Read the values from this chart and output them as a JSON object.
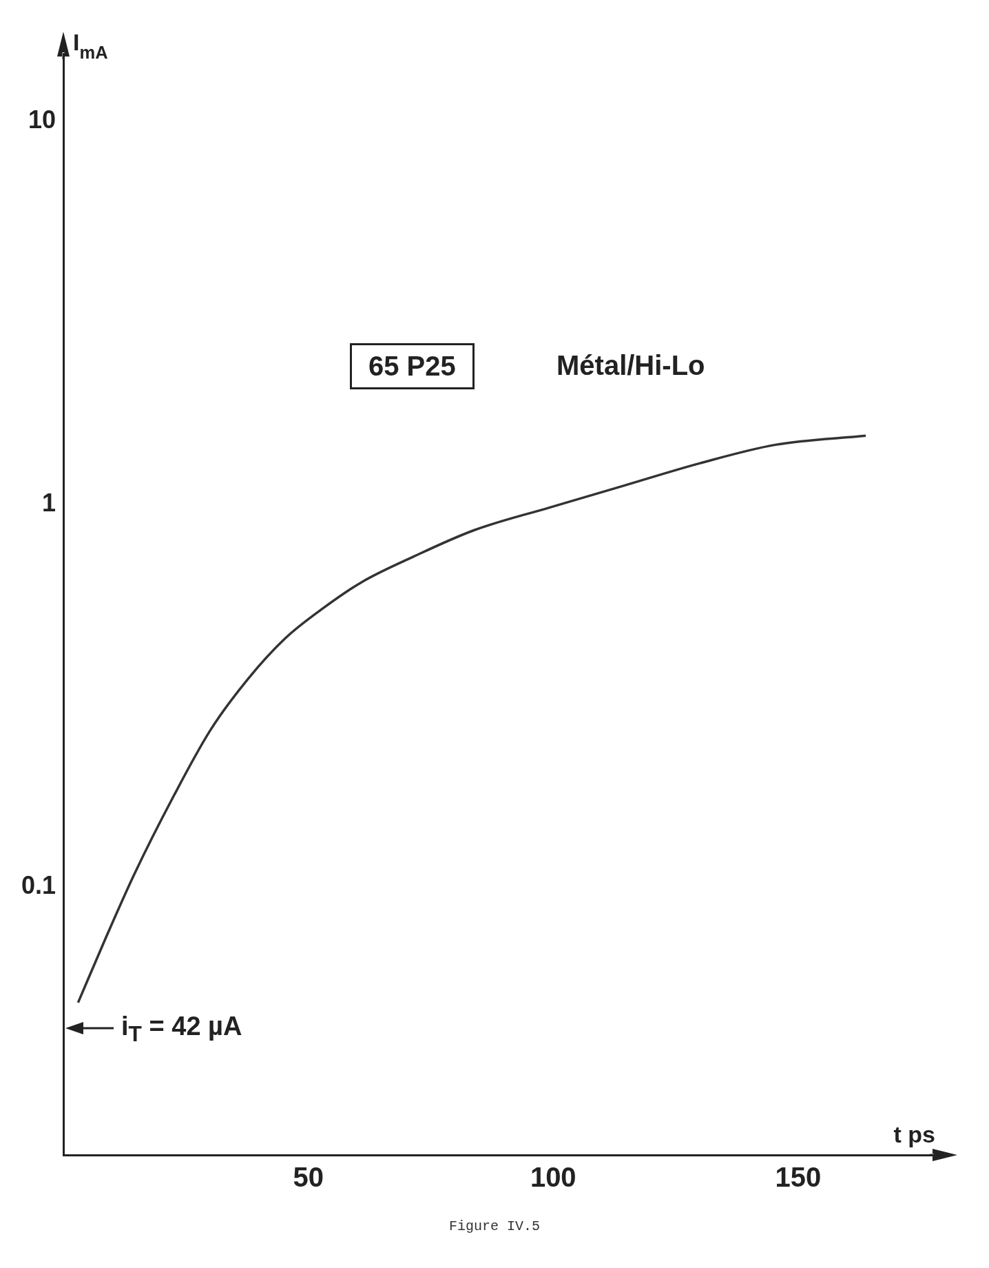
{
  "chart_data": {
    "type": "line",
    "xlabel": "t ps",
    "ylabel": "I$_{mA}$",
    "log": "y",
    "grid": false,
    "legend": false,
    "marker": "none",
    "line_style": "solid",
    "xlim": [
      0,
      178
    ],
    "xticks": [
      50,
      100,
      150
    ],
    "ylim": [
      0.02,
      15
    ],
    "yticks": [
      {
        "value": 0.1,
        "label": "0.1"
      },
      1,
      10
    ],
    "x": [
      3,
      8.5,
      14.6,
      22.3,
      30,
      37.7,
      45.4,
      53,
      60.8,
      71.5,
      83.8,
      99.2,
      114.6,
      130,
      145.4,
      163.8
    ],
    "series": [
      {
        "color": "#333333",
        "values": [
          0.05,
          0.073,
          0.109,
          0.171,
          0.257,
          0.35,
          0.448,
          0.535,
          0.625,
          0.73,
          0.855,
          0.98,
          1.12,
          1.28,
          1.43,
          1.51
        ]
      }
    ],
    "annotations": [
      "65 P25",
      "Métal/Hi-Lo",
      "i$_{T}$ = 42 µA",
      "Figure IV.5"
    ]
  }
}
